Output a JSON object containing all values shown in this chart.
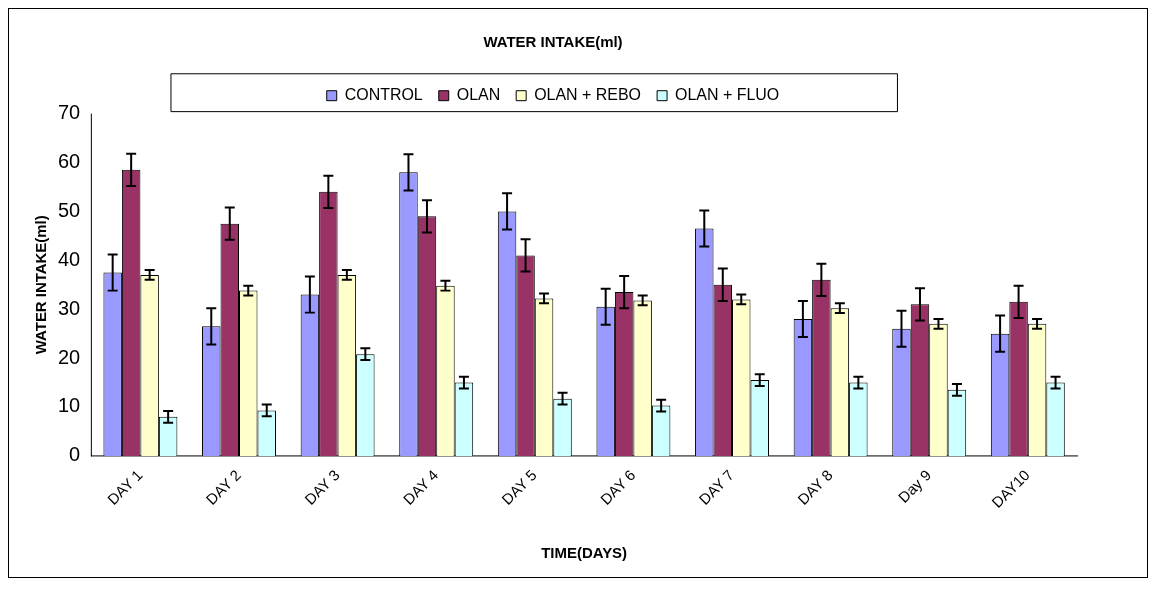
{
  "chart_data": {
    "type": "bar",
    "title": "WATER INTAKE(ml)",
    "xlabel": "TIME(DAYS)",
    "ylabel": "WATER INTAKE(ml)",
    "categories": [
      "DAY 1",
      "DAY 2",
      "DAY 3",
      "DAY 4",
      "DAY 5",
      "DAY 6",
      "DAY 7",
      "DAY 8",
      "Day 9",
      "DAY10"
    ],
    "series": [
      {
        "name": "CONTROL",
        "color": "#9999ff",
        "values": [
          37.5,
          26.5,
          33,
          58,
          50,
          30.5,
          46.5,
          28,
          26,
          25
        ],
        "errors": [
          3.7,
          3.7,
          3.7,
          3.7,
          3.7,
          3.7,
          3.7,
          3.7,
          3.7,
          3.7
        ]
      },
      {
        "name": "OLAN",
        "color": "#993366",
        "values": [
          58.5,
          47.5,
          54,
          49,
          41,
          33.5,
          35,
          36,
          31,
          31.5
        ],
        "errors": [
          3.3,
          3.3,
          3.3,
          3.3,
          3.3,
          3.3,
          3.3,
          3.3,
          3.3,
          3.3
        ]
      },
      {
        "name": "OLAN + REBO",
        "color": "#ffffcc",
        "values": [
          37,
          33.8,
          37,
          34.8,
          32.2,
          31.8,
          32,
          30.2,
          27,
          27
        ],
        "errors": [
          1,
          1,
          1,
          1,
          1,
          1,
          1,
          1,
          1,
          1
        ]
      },
      {
        "name": "OLAN + FLUO",
        "color": "#ccffff",
        "values": [
          8,
          9.3,
          20.8,
          15,
          11.7,
          10.3,
          15.5,
          15,
          13.5,
          15
        ],
        "errors": [
          1.2,
          1.2,
          1.2,
          1.2,
          1.2,
          1.2,
          1.2,
          1.2,
          1.2,
          1.2
        ]
      }
    ],
    "ylim": [
      0,
      70
    ],
    "yticks": [
      0,
      10,
      20,
      30,
      40,
      50,
      60,
      70
    ],
    "grid": false,
    "legend": "top"
  }
}
